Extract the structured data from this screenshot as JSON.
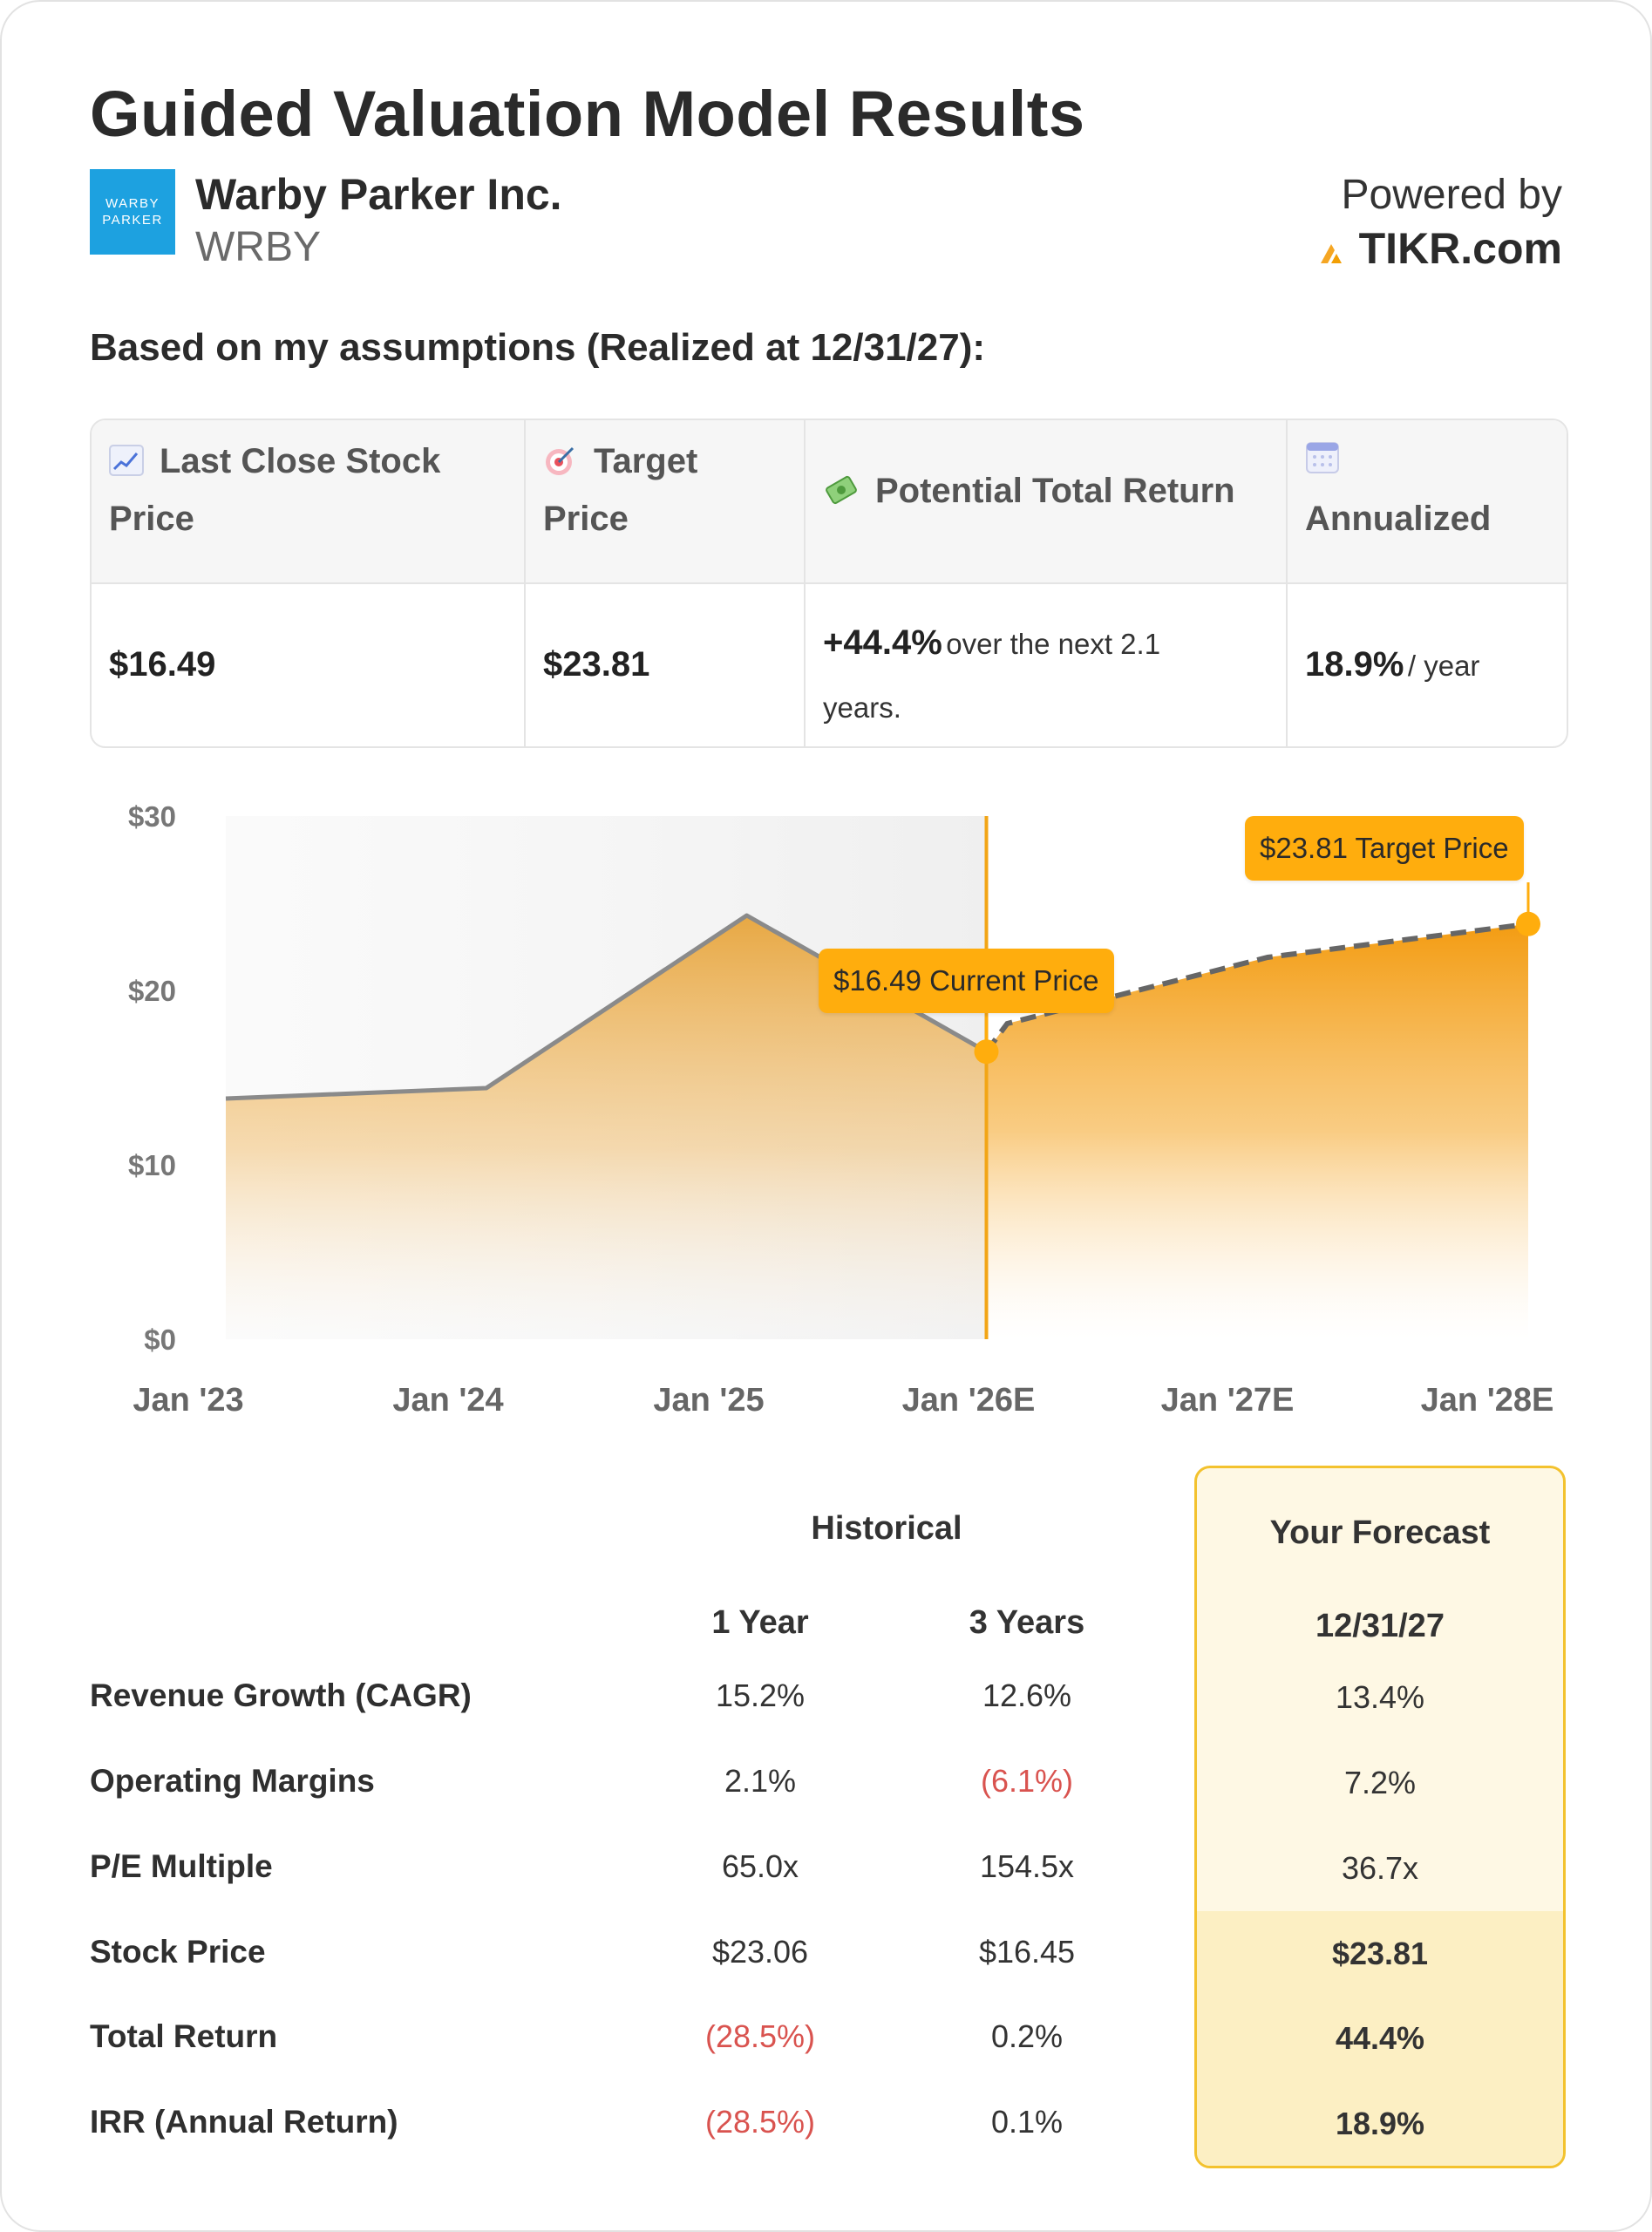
{
  "header": {
    "title": "Guided Valuation Model Results",
    "logo_text_line1": "WARBY",
    "logo_text_line2": "PARKER",
    "company": "Warby Parker Inc.",
    "ticker": "WRBY",
    "powered_by": "Powered by",
    "brand": "TIKR.com"
  },
  "assumptions_title": "Based on my assumptions (Realized at 12/31/27):",
  "summary": {
    "last_close_label_1": "Last Close Stock",
    "last_close_label_2": "Price",
    "target_label_1": "Target",
    "target_label_2": "Price",
    "return_label": "Potential Total Return",
    "annualized_label": "Annualized",
    "last_close_value": "$16.49",
    "target_value": "$23.81",
    "return_value": "+44.4%",
    "return_sub_1": "over the next 2.1",
    "return_sub_2": "years.",
    "annualized_value": "18.9%",
    "annualized_sub": "/ year"
  },
  "chart_data": {
    "type": "area",
    "y_ticks": [
      "$30",
      "$20",
      "$10",
      "$0"
    ],
    "ylim": [
      0,
      30
    ],
    "x_ticks": [
      "Jan '23",
      "Jan '24",
      "Jan '25",
      "Jan '26E",
      "Jan '27E",
      "Jan '28E"
    ],
    "series": [
      {
        "x": [
          2023.0,
          2024.0,
          2025.0,
          2025.92
        ],
        "y": [
          13.8,
          14.4,
          24.3,
          16.49
        ],
        "style": "solid"
      },
      {
        "x": [
          2025.92,
          2026.0,
          2027.0,
          2028.0
        ],
        "y": [
          16.49,
          18.1,
          21.9,
          23.81
        ],
        "style": "dashed"
      }
    ],
    "current": {
      "x": 2025.92,
      "y": 16.49,
      "label": "$16.49 Current Price"
    },
    "target": {
      "x": 2028.0,
      "y": 23.81,
      "label": "$23.81 Target Price"
    },
    "colors": {
      "accent": "#ffad0d",
      "area": "#f5a21b",
      "line": "#8a8a8a",
      "divider": "#f2a516"
    }
  },
  "table": {
    "historical_title": "Historical",
    "forecast_title": "Your Forecast",
    "col_1y": "1 Year",
    "col_3y": "3 Years",
    "col_fc": "12/31/27",
    "rows": [
      {
        "label": "Revenue Growth (CAGR)",
        "y1": "15.2%",
        "y3": "12.6%",
        "fc": "13.4%"
      },
      {
        "label": "Operating Margins",
        "y1": "2.1%",
        "y3": "(6.1%)",
        "fc": "7.2%"
      },
      {
        "label": "P/E Multiple",
        "y1": "65.0x",
        "y3": "154.5x",
        "fc": "36.7x"
      },
      {
        "label": "Stock Price",
        "y1": "$23.06",
        "y3": "$16.45",
        "fc": "$23.81"
      },
      {
        "label": "Total Return",
        "y1": "(28.5%)",
        "y3": "0.2%",
        "fc": "44.4%"
      },
      {
        "label": "IRR (Annual Return)",
        "y1": "(28.5%)",
        "y3": "0.1%",
        "fc": "18.9%"
      }
    ]
  }
}
